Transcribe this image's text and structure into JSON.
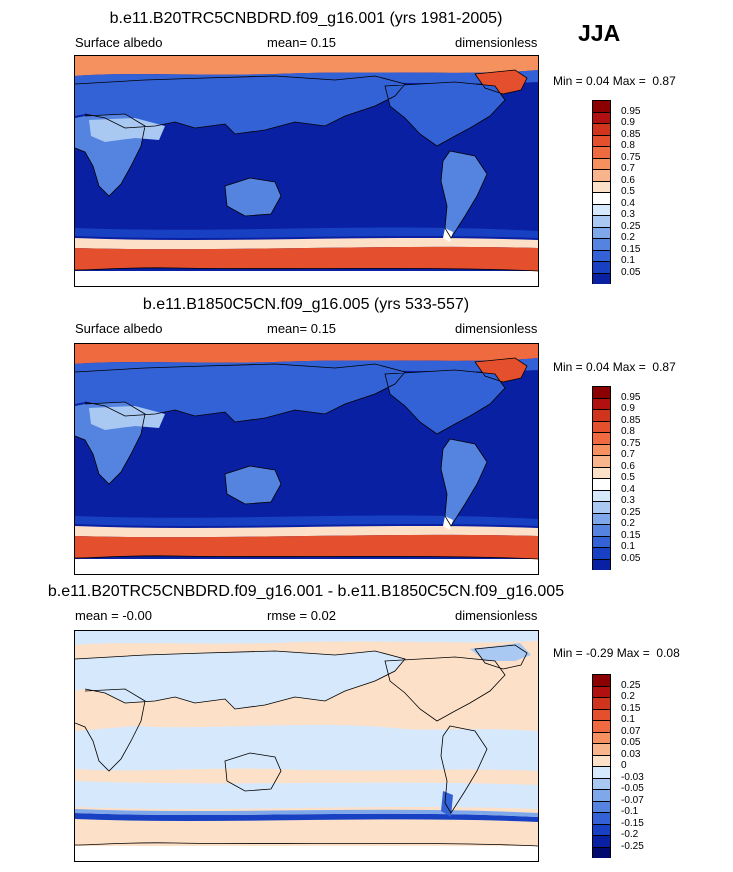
{
  "season": "JJA",
  "panels": [
    {
      "title": "b.e11.B20TRC5CNBDRD.f09_g16.001 (yrs 1981-2005)",
      "left_label": "Surface albedo",
      "center_label": "mean=  0.15",
      "right_label": "dimensionless",
      "min_label": "Min =",
      "min_value": "0.04",
      "max_label": "Max =",
      "max_value": "0.87",
      "field": "albedo",
      "colorbar": {
        "labels": [
          "0.95",
          "0.9",
          "0.85",
          "0.8",
          "0.75",
          "0.7",
          "0.6",
          "0.5",
          "0.4",
          "0.3",
          "0.25",
          "0.2",
          "0.15",
          "0.1",
          "0.05"
        ],
        "colors": [
          "#8b0000",
          "#b01010",
          "#d0341c",
          "#e4502e",
          "#f06a40",
          "#f5905f",
          "#f8b48a",
          "#fde0c8",
          "#ffffff",
          "#d6e8fb",
          "#a9c8f2",
          "#7fa8ea",
          "#5584e0",
          "#3362d6",
          "#1840c2",
          "#0a20a2"
        ]
      }
    },
    {
      "title": "b.e11.B1850C5CN.f09_g16.005 (yrs 533-557)",
      "left_label": "Surface albedo",
      "center_label": "mean=  0.15",
      "right_label": "dimensionless",
      "min_label": "Min =",
      "min_value": "0.04",
      "max_label": "Max =",
      "max_value": "0.87",
      "field": "albedo",
      "colorbar": {
        "labels": [
          "0.95",
          "0.9",
          "0.85",
          "0.8",
          "0.75",
          "0.7",
          "0.6",
          "0.5",
          "0.4",
          "0.3",
          "0.25",
          "0.2",
          "0.15",
          "0.1",
          "0.05"
        ],
        "colors": [
          "#8b0000",
          "#b01010",
          "#d0341c",
          "#e4502e",
          "#f06a40",
          "#f5905f",
          "#f8b48a",
          "#fde0c8",
          "#ffffff",
          "#d6e8fb",
          "#a9c8f2",
          "#7fa8ea",
          "#5584e0",
          "#3362d6",
          "#1840c2",
          "#0a20a2"
        ]
      }
    },
    {
      "title": "b.e11.B20TRC5CNBDRD.f09_g16.001 - b.e11.B1850C5CN.f09_g16.005",
      "left_label": "mean =  -0.00",
      "center_label": "rmse =  0.02",
      "right_label": "dimensionless",
      "min_label": "Min =",
      "min_value": "-0.29",
      "max_label": "Max =",
      "max_value": "0.08",
      "field": "difference",
      "colorbar": {
        "labels": [
          "0.25",
          "0.2",
          "0.15",
          "0.1",
          "0.07",
          "0.05",
          "0.03",
          "0",
          "-0.03",
          "-0.05",
          "-0.07",
          "-0.1",
          "-0.15",
          "-0.2",
          "-0.25"
        ],
        "colors": [
          "#8b0000",
          "#b01010",
          "#d0341c",
          "#e4502e",
          "#f06a40",
          "#f5905f",
          "#f8b48a",
          "#fde0c8",
          "#d6e8fb",
          "#a9c8f2",
          "#7fa8ea",
          "#5584e0",
          "#3362d6",
          "#1840c2",
          "#0a20a2",
          "#020a70"
        ]
      }
    }
  ],
  "chart_data": [
    {
      "type": "heatmap",
      "title": "b.e11.B20TRC5CNBDRD.f09_g16.001 (yrs 1981-2005)",
      "variable": "Surface albedo",
      "units": "dimensionless",
      "mean": 0.15,
      "min": 0.04,
      "max": 0.87,
      "levels": [
        0.05,
        0.1,
        0.15,
        0.2,
        0.25,
        0.3,
        0.4,
        0.5,
        0.6,
        0.7,
        0.75,
        0.8,
        0.85,
        0.9,
        0.95
      ]
    },
    {
      "type": "heatmap",
      "title": "b.e11.B1850C5CN.f09_g16.005 (yrs 533-557)",
      "variable": "Surface albedo",
      "units": "dimensionless",
      "mean": 0.15,
      "min": 0.04,
      "max": 0.87,
      "levels": [
        0.05,
        0.1,
        0.15,
        0.2,
        0.25,
        0.3,
        0.4,
        0.5,
        0.6,
        0.7,
        0.75,
        0.8,
        0.85,
        0.9,
        0.95
      ]
    },
    {
      "type": "heatmap",
      "title": "b.e11.B20TRC5CNBDRD.f09_g16.001 - b.e11.B1850C5CN.f09_g16.005",
      "units": "dimensionless",
      "mean": -0.0,
      "rmse": 0.02,
      "min": -0.29,
      "max": 0.08,
      "levels": [
        -0.25,
        -0.2,
        -0.15,
        -0.1,
        -0.07,
        -0.05,
        -0.03,
        0,
        0.03,
        0.05,
        0.07,
        0.1,
        0.15,
        0.2,
        0.25
      ]
    }
  ]
}
